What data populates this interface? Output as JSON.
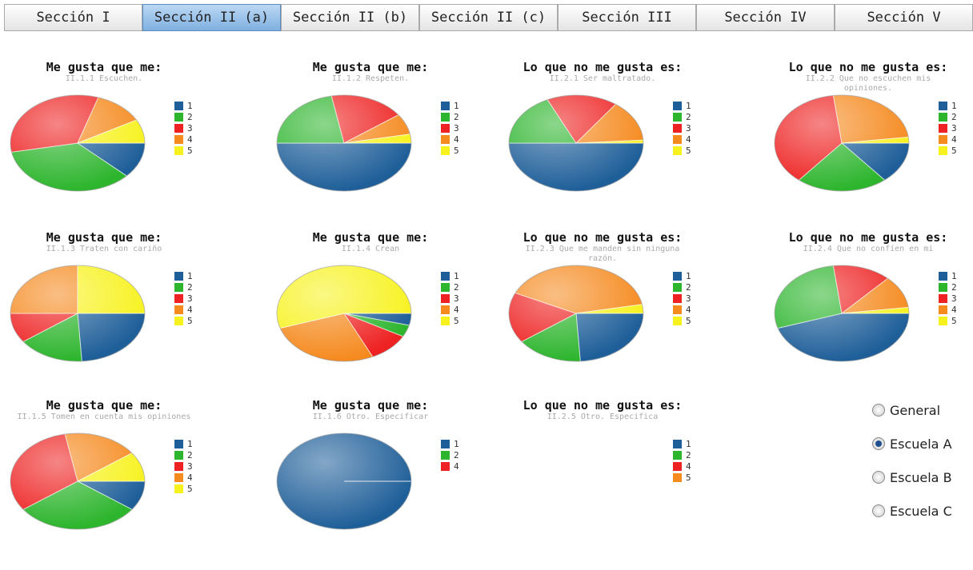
{
  "tabs": [
    "Sección I",
    "Sección II (a)",
    "Sección II (b)",
    "Sección II (c)",
    "Sección III",
    "Sección IV",
    "Sección V"
  ],
  "selected_tab": 1,
  "chart_data": [
    {
      "type": "pie",
      "title": "Me gusta que me:",
      "subtitle": "II.1.1 Escuchen.",
      "categories": [
        "1",
        "2",
        "3",
        "4",
        "5"
      ],
      "values": [
        12,
        35,
        33,
        12,
        8
      ],
      "colors": [
        "#1f5f99",
        "#2db52d",
        "#ee2222",
        "#f58a1f",
        "#f7f21e"
      ]
    },
    {
      "type": "pie",
      "title": "Me gusta que me:",
      "subtitle": "II.1.2 Respeten.",
      "categories": [
        "1",
        "2",
        "3",
        "4",
        "5"
      ],
      "values": [
        50,
        22,
        18,
        7,
        3
      ],
      "colors": [
        "#1f5f99",
        "#2db52d",
        "#ee2222",
        "#f58a1f",
        "#f7f21e"
      ]
    },
    {
      "type": "pie",
      "title": "Lo que no me gusta es:",
      "subtitle": "II.2.1 Ser maltratado.",
      "categories": [
        "1",
        "2",
        "3",
        "4",
        "5"
      ],
      "values": [
        50,
        18,
        17,
        14,
        1
      ],
      "colors": [
        "#1f5f99",
        "#2db52d",
        "#ee2222",
        "#f58a1f",
        "#f7f21e"
      ]
    },
    {
      "type": "pie",
      "title": "Lo que no me gusta es:",
      "subtitle": "II.2.2 Que no escuchen mis opiniones.",
      "categories": [
        "1",
        "2",
        "3",
        "4",
        "5"
      ],
      "values": [
        14,
        22,
        37,
        25,
        2
      ],
      "colors": [
        "#1f5f99",
        "#2db52d",
        "#ee2222",
        "#f58a1f",
        "#f7f21e"
      ]
    },
    {
      "type": "pie",
      "title": "Me gusta que me:",
      "subtitle": "II.1.3 Traten con cariño",
      "categories": [
        "1",
        "2",
        "3",
        "4",
        "5"
      ],
      "values": [
        24,
        16,
        10,
        25,
        25
      ],
      "colors": [
        "#1f5f99",
        "#2db52d",
        "#ee2222",
        "#f58a1f",
        "#f7f21e"
      ]
    },
    {
      "type": "pie",
      "title": "Me gusta que me:",
      "subtitle": "II.1.4 Crean",
      "categories": [
        "1",
        "2",
        "3",
        "4",
        "5"
      ],
      "values": [
        4,
        4,
        10,
        27,
        55
      ],
      "colors": [
        "#1f5f99",
        "#2db52d",
        "#ee2222",
        "#f58a1f",
        "#f7f21e"
      ]
    },
    {
      "type": "pie",
      "title": "Lo que no me gusta es:",
      "subtitle": "II.2.3 Que me manden sin ninguna razón.",
      "categories": [
        "1",
        "2",
        "3",
        "4",
        "5"
      ],
      "values": [
        24,
        16,
        17,
        40,
        3
      ],
      "colors": [
        "#1f5f99",
        "#2db52d",
        "#ee2222",
        "#f58a1f",
        "#f7f21e"
      ]
    },
    {
      "type": "pie",
      "title": "Lo que no me gusta es:",
      "subtitle": "II.2.4 Que no confíen en mi",
      "categories": [
        "1",
        "2",
        "3",
        "4",
        "5"
      ],
      "values": [
        45,
        28,
        14,
        11,
        2
      ],
      "colors": [
        "#1f5f99",
        "#2db52d",
        "#ee2222",
        "#f58a1f",
        "#f7f21e"
      ]
    },
    {
      "type": "pie",
      "title": "Me gusta que me:",
      "subtitle": "II.1.5 Tomen en cuenta mis opiniones",
      "categories": [
        "1",
        "2",
        "3",
        "4",
        "5"
      ],
      "values": [
        10,
        30,
        32,
        18,
        10
      ],
      "colors": [
        "#1f5f99",
        "#2db52d",
        "#ee2222",
        "#f58a1f",
        "#f7f21e"
      ]
    },
    {
      "type": "pie",
      "title": "Me gusta que me:",
      "subtitle": "II.1.6 Otro. Especificar",
      "categories": [
        "1",
        "2",
        "4"
      ],
      "values": [
        100,
        0,
        0
      ],
      "colors": [
        "#1f5f99",
        "#2db52d",
        "#ee2222"
      ]
    },
    {
      "type": "pie",
      "title": "Lo que no me gusta es:",
      "subtitle": "II.2.5 Otro. Especifica",
      "categories": [
        "1",
        "2",
        "4",
        "5"
      ],
      "values": [
        null,
        null,
        null,
        null
      ],
      "colors": [
        "#1f5f99",
        "#2db52d",
        "#ee2222",
        "#f58a1f"
      ]
    }
  ],
  "options": {
    "labels": [
      "General",
      "Escuela A",
      "Escuela B",
      "Escuela C"
    ],
    "selected": 1
  }
}
